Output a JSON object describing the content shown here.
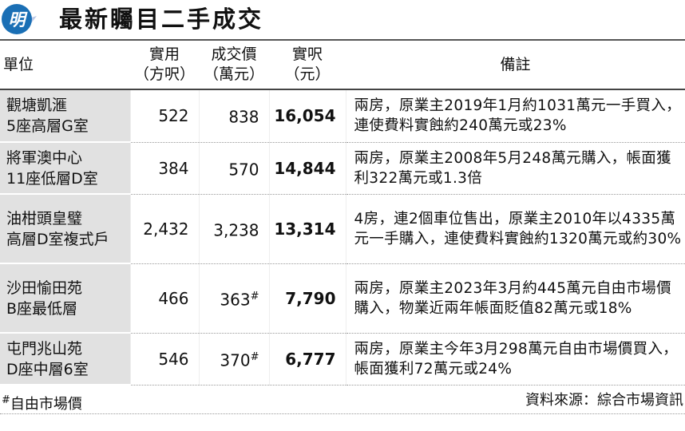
{
  "header": {
    "logo_text": "明",
    "title": "最新矚目二手成交",
    "brand_color": "#1a6fb5"
  },
  "columns": [
    {
      "label": "單位",
      "unit": ""
    },
    {
      "label": "實用",
      "unit": "（方呎）"
    },
    {
      "label": "成交價",
      "unit": "（萬元）"
    },
    {
      "label": "實呎",
      "unit": "（元）"
    },
    {
      "label": "備註",
      "unit": ""
    }
  ],
  "rows": [
    {
      "unit_line1": "觀塘凱滙",
      "unit_line2": "5座高層G室",
      "area": "522",
      "price": "838",
      "mark": "",
      "psf": "16,054",
      "note": "兩房，原業主2019年1月約1031萬元一手買入，連使費料實蝕約240萬元或23%"
    },
    {
      "unit_line1": "將軍澳中心",
      "unit_line2": "11座低層D室",
      "area": "384",
      "price": "570",
      "mark": "",
      "psf": "14,844",
      "note": "兩房，原業主2008年5月248萬元購入，帳面獲利322萬元或1.3倍"
    },
    {
      "unit_line1": "油柑頭皇璧",
      "unit_line2": "高層D室複式戶",
      "area": "2,432",
      "price": "3,238",
      "mark": "",
      "psf": "13,314",
      "note": "4房，連2個車位售出，原業主2010年以4335萬元一手購入，連使費料實蝕約1320萬元或約30%"
    },
    {
      "unit_line1": "沙田愉田苑",
      "unit_line2": "B座最低層",
      "area": "466",
      "price": "363",
      "mark": "#",
      "psf": "7,790",
      "note": "兩房，原業主2023年3月約445萬元自由市場價購入，物業近兩年帳面貶值82萬元或18%"
    },
    {
      "unit_line1": "屯門兆山苑",
      "unit_line2": "D座中層6室",
      "area": "546",
      "price": "370",
      "mark": "#",
      "psf": "6,777",
      "note": "兩房，原業主今年3月298萬元自由市場價買入，帳面獲利72萬元或24%"
    }
  ],
  "footer": {
    "mark": "#",
    "footnote": "自由市場價",
    "source": "資料來源：綜合市場資訊"
  }
}
